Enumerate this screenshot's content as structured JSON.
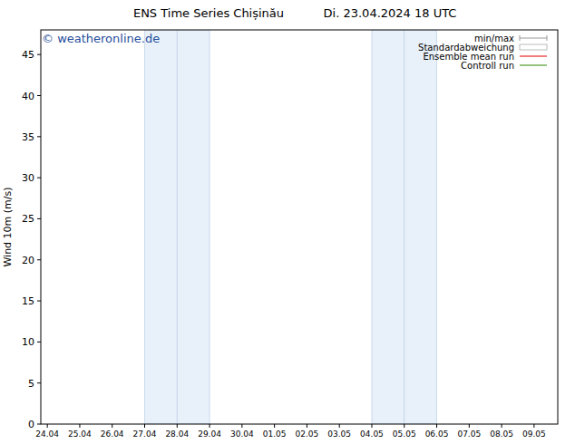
{
  "chart_data": {
    "type": "line",
    "title": "ENS Time Series Chișinău",
    "subtitle": "Di. 23.04.2024 18 UTC",
    "annotations": [
      "© weatheronline.de"
    ],
    "y_label": "Wind 10m (m/s)",
    "x": [
      "24.04",
      "25.04",
      "26.04",
      "27.04",
      "28.04",
      "29.04",
      "30.04",
      "01.05",
      "02.05",
      "03.05",
      "04.05",
      "05.05",
      "06.05",
      "07.05",
      "08.05",
      "09.05"
    ],
    "series": [
      {
        "name": "min/max",
        "color": "#999999",
        "values": [
          null,
          null,
          null,
          null,
          null,
          null,
          null,
          null,
          null,
          null,
          null,
          null,
          null,
          null,
          null,
          null
        ]
      },
      {
        "name": "Standardabweichung",
        "color": "#bbbbbb",
        "values": [
          null,
          null,
          null,
          null,
          null,
          null,
          null,
          null,
          null,
          null,
          null,
          null,
          null,
          null,
          null,
          null
        ]
      },
      {
        "name": "Ensemble mean run",
        "color": "#e00000",
        "values": [
          null,
          null,
          null,
          null,
          null,
          null,
          null,
          null,
          null,
          null,
          null,
          null,
          null,
          null,
          null,
          null
        ]
      },
      {
        "name": "Controll run",
        "color": "#2a8a00",
        "values": [
          null,
          null,
          null,
          null,
          null,
          null,
          null,
          null,
          null,
          null,
          null,
          null,
          null,
          null,
          null,
          null
        ]
      }
    ],
    "bands": [
      {
        "from": "27.04",
        "to": "28.04"
      },
      {
        "from": "28.04",
        "to": "29.04"
      },
      {
        "from": "04.05",
        "to": "05.05"
      },
      {
        "from": "05.05",
        "to": "06.05"
      }
    ],
    "ylim": [
      0,
      48
    ],
    "yticks": [
      0,
      5,
      10,
      15,
      20,
      25,
      30,
      35,
      40,
      45
    ],
    "legend": "top-right",
    "grid": false
  }
}
